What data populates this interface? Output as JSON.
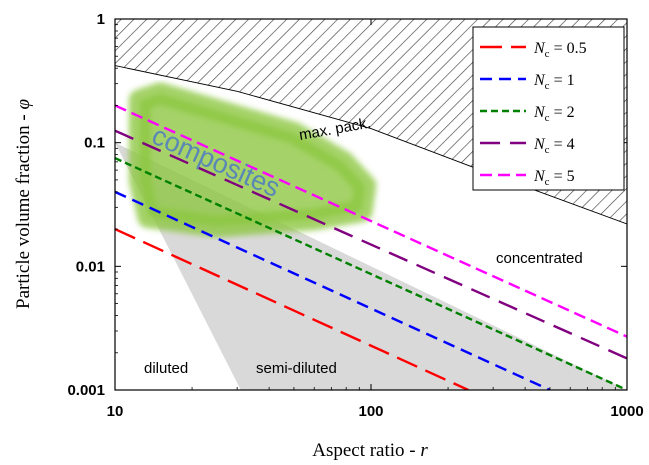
{
  "chart_data": {
    "type": "line",
    "xscale": "log",
    "yscale": "log",
    "xlim": [
      10,
      1000
    ],
    "ylim": [
      0.001,
      1
    ],
    "xlabel": "Aspect ratio - r",
    "ylabel": "Particle volume fraction - φ",
    "x_ticks": [
      {
        "value": 10,
        "label": "10"
      },
      {
        "value": 100,
        "label": "100"
      },
      {
        "value": 1000,
        "label": "1000"
      }
    ],
    "y_ticks": [
      {
        "value": 0.001,
        "label": "0.001"
      },
      {
        "value": 0.01,
        "label": "0.01"
      },
      {
        "value": 0.1,
        "label": "0.1"
      },
      {
        "value": 1,
        "label": "1"
      }
    ],
    "grid": false,
    "legend_position": "top-right",
    "series": [
      {
        "name": "Nc = 0.5",
        "sub": "c",
        "value": "0.5",
        "color": "#ff0000",
        "dash": "22 9",
        "x": [
          10,
          240
        ],
        "y": [
          0.02,
          0.001
        ]
      },
      {
        "name": "Nc = 1",
        "sub": "c",
        "value": "1",
        "color": "#0000ff",
        "dash": "12 7",
        "x": [
          10,
          500
        ],
        "y": [
          0.04,
          0.001
        ]
      },
      {
        "name": "Nc = 2",
        "sub": "c",
        "value": "2",
        "color": "#008000",
        "dash": "7 4",
        "x": [
          10,
          1000
        ],
        "y": [
          0.075,
          0.001
        ]
      },
      {
        "name": "Nc = 4",
        "sub": "c",
        "value": "4",
        "color": "#800080",
        "dash": "20 10",
        "x": [
          10,
          1000
        ],
        "y": [
          0.125,
          0.0018
        ]
      },
      {
        "name": "Nc = 5",
        "sub": "c",
        "value": "5",
        "color": "#ff00ff",
        "dash": "12 6",
        "x": [
          10,
          1000
        ],
        "y": [
          0.2,
          0.0027
        ]
      }
    ],
    "max_packing": {
      "x": [
        10,
        30,
        100,
        300,
        1000
      ],
      "y": [
        0.42,
        0.26,
        0.13,
        0.055,
        0.022
      ]
    },
    "diluted_boundary": {
      "x": [
        10,
        31
      ],
      "y": [
        0.1,
        0.001
      ]
    },
    "semi_diluted_boundary": {
      "x": [
        10,
        1000
      ],
      "y": [
        0.1,
        0.001
      ]
    },
    "regions": {
      "max_pack": "max. pack.",
      "concentrated": "concentrated",
      "semi_diluted": "semi-diluted",
      "diluted": "diluted",
      "composites": "composites"
    },
    "colors": {
      "hatch": "#444444",
      "gray_region": "#d9d9d9",
      "composites_fill": "#8cc63f",
      "composites_text": "#5a87b5"
    }
  }
}
